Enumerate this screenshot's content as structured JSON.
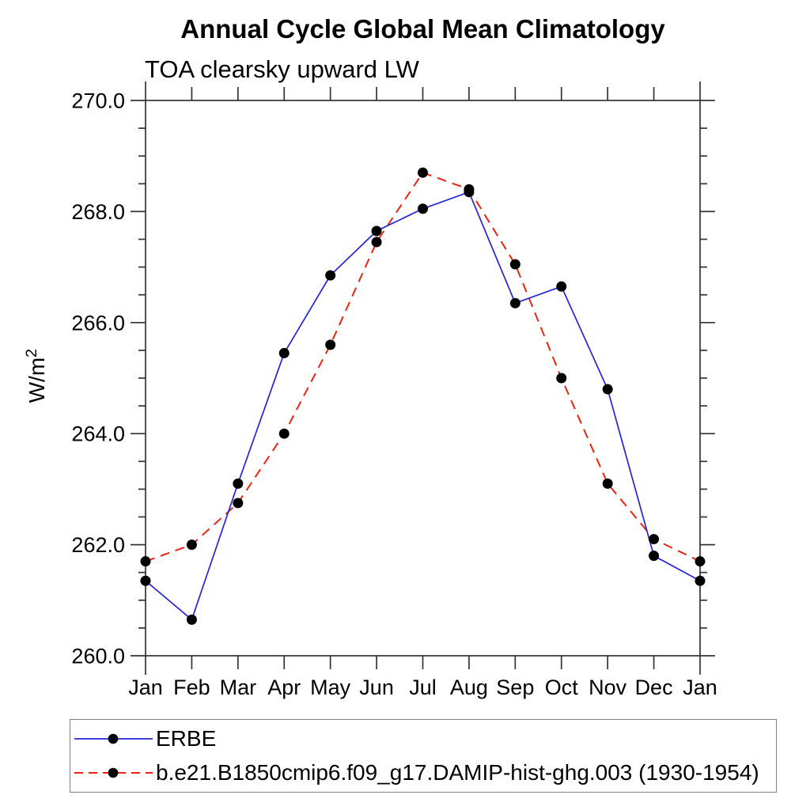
{
  "header": {
    "title": "Annual Cycle Global Mean Climatology",
    "subtitle": "TOA clearsky upward LW"
  },
  "axes": {
    "y_label_base": "W/m",
    "y_label_sup": "2",
    "x_tick_labels": [
      "Jan",
      "Feb",
      "Mar",
      "Apr",
      "May",
      "Jun",
      "Jul",
      "Aug",
      "Sep",
      "Oct",
      "Nov",
      "Dec",
      "Jan"
    ]
  },
  "colors": {
    "erbe_line": "#2424dd",
    "model_line": "#ee2211",
    "marker": "#000000",
    "axis": "#333333"
  },
  "legend": {
    "items": [
      {
        "label": "ERBE",
        "style": "solid"
      },
      {
        "label": "b.e21.B1850cmip6.f09_g17.DAMIP-hist-ghg.003 (1930-1954)",
        "style": "dashed"
      }
    ]
  },
  "chart_data": {
    "type": "line",
    "title": "Annual Cycle Global Mean Climatology",
    "subtitle": "TOA clearsky upward LW",
    "xlabel": "",
    "ylabel": "W/m^2",
    "categories": [
      "Jan",
      "Feb",
      "Mar",
      "Apr",
      "May",
      "Jun",
      "Jul",
      "Aug",
      "Sep",
      "Oct",
      "Nov",
      "Dec",
      "Jan"
    ],
    "series": [
      {
        "name": "ERBE",
        "color": "#2424dd",
        "line_style": "solid",
        "marker": "circle",
        "marker_color": "#000000",
        "values": [
          261.35,
          260.65,
          263.1,
          265.45,
          266.85,
          267.65,
          268.05,
          268.35,
          266.35,
          266.65,
          264.8,
          261.8,
          261.35
        ]
      },
      {
        "name": "b.e21.B1850cmip6.f09_g17.DAMIP-hist-ghg.003 (1930-1954)",
        "color": "#ee2211",
        "line_style": "dashed",
        "marker": "circle",
        "marker_color": "#000000",
        "values": [
          261.7,
          262.0,
          262.75,
          264.0,
          265.6,
          267.45,
          268.7,
          268.4,
          267.05,
          265.0,
          263.1,
          262.1,
          261.7
        ]
      }
    ],
    "ylim": [
      260.0,
      270.0
    ],
    "y_major_step": 2.0,
    "y_minor_step": 0.5,
    "y_tick_format": "one_decimal",
    "grid": false,
    "legend_position": "bottom-left"
  }
}
